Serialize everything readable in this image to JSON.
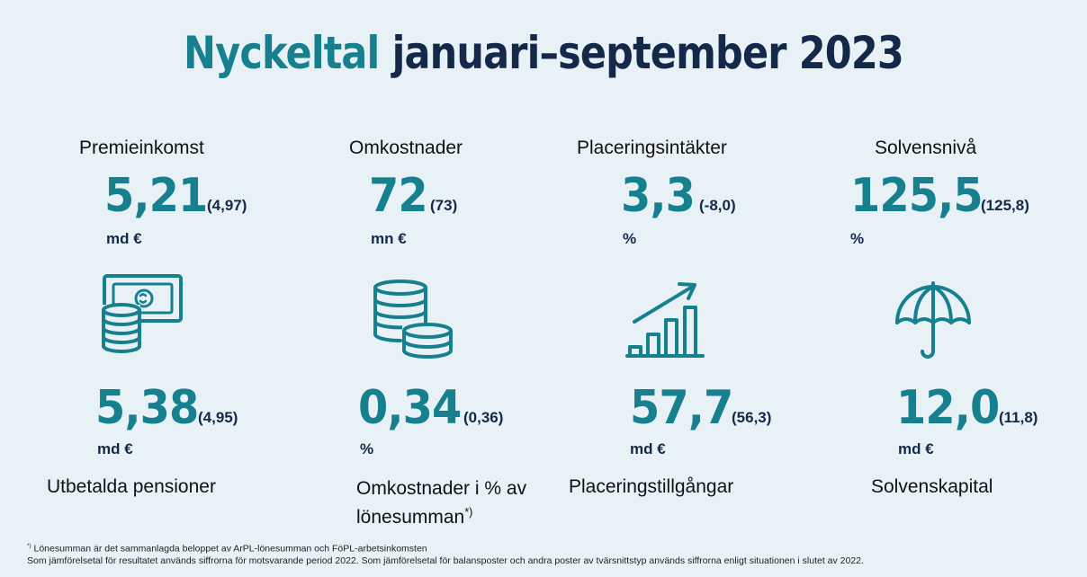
{
  "title": {
    "accent": "Nyckeltal",
    "rest": "januari–september 2023"
  },
  "top_metrics": [
    {
      "label": "Premieinkomst",
      "value": "5,21",
      "compare": "(4,97)",
      "unit": "md €"
    },
    {
      "label": "Omkostnader",
      "value": "72",
      "compare": "(73)",
      "unit": "mn €"
    },
    {
      "label": "Placeringsintäkter",
      "value": "3,3",
      "compare": "(-8,0)",
      "unit": "%"
    },
    {
      "label": "Solvensnivå",
      "value": "125,5",
      "compare": "(125,8)",
      "unit": "%"
    }
  ],
  "bottom_metrics": [
    {
      "label": "Utbetalda pensioner",
      "value": "5,38",
      "compare": "(4,95)",
      "unit": "md €",
      "icon": "money-coins-icon"
    },
    {
      "label_line1": "Omkostnader i % av",
      "label_line2": "lönesumman",
      "label_sup": "*)",
      "value": "0,34",
      "compare": "(0,36)",
      "unit": "%",
      "icon": "coin-stack-icon"
    },
    {
      "label": "Placeringstillgångar",
      "value": "57,7",
      "compare": "(56,3)",
      "unit": "md €",
      "icon": "growth-chart-icon"
    },
    {
      "label": "Solvenskapital",
      "value": "12,0",
      "compare": "(11,8)",
      "unit": "md €",
      "icon": "umbrella-icon"
    }
  ],
  "footnotes": {
    "sup": "*)",
    "line1": "Lönesumman är det sammanlagda beloppet av ArPL-lönesumman och FöPL-arbetsinkomsten",
    "line2": "Som jämförelsetal för resultatet används siffrorna för motsvarande period 2022. Som jämförelsetal för balansposter och andra poster av tvärsnittstyp används siffrorna enligt situationen i slutet av 2022."
  },
  "colors": {
    "teal": "#16808f",
    "navy": "#14294a",
    "background": "#e8f1f6"
  }
}
